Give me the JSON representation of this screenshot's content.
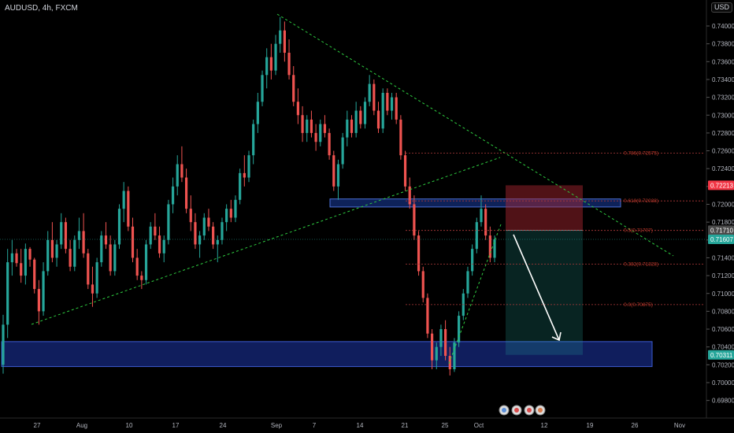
{
  "header": {
    "symbol": "AUDUSD, 4h, FXCM",
    "currency": "USD"
  },
  "chart_data": {
    "type": "candlestick",
    "y_ticks": [
      "0.74000",
      "0.73800",
      "0.73600",
      "0.73400",
      "0.73200",
      "0.73000",
      "0.72800",
      "0.72600",
      "0.72400",
      "0.72200",
      "0.72000",
      "0.71800",
      "0.71600",
      "0.71400",
      "0.71200",
      "0.71000",
      "0.70800",
      "0.70600",
      "0.70400",
      "0.70200",
      "0.70000",
      "0.69800"
    ],
    "x_ticks": [
      "27",
      "Aug",
      "10",
      "17",
      "24",
      "Sep",
      "7",
      "14",
      "21",
      "25",
      "Oct",
      "12",
      "19",
      "26",
      "Nov"
    ],
    "price_tags": [
      {
        "label": "0.72213",
        "price": 0.72213,
        "color": "#f23645"
      },
      {
        "label": "0.71710",
        "price": 0.7171,
        "color": "#4a4a4a"
      },
      {
        "label": "0.71607",
        "price": 0.71607,
        "color": "#26a69a"
      },
      {
        "label": "0.70311",
        "price": 0.70311,
        "color": "#26a69a"
      }
    ],
    "fib_levels": [
      {
        "label": "0.786(0.72575)",
        "price": 0.72575
      },
      {
        "label": "0.618(0.72038)",
        "price": 0.72038
      },
      {
        "label": "0.5(0.71707)",
        "price": 0.71707
      },
      {
        "label": "0.382(0.71328)",
        "price": 0.71328
      },
      {
        "label": "0.0(0.70875)",
        "price": 0.70875
      }
    ],
    "zones": [
      {
        "name": "resistance-zone",
        "top": 0.7206,
        "bottom": 0.7197
      },
      {
        "name": "support-zone",
        "top": 0.7046,
        "bottom": 0.7018
      }
    ],
    "trade": {
      "entry": 0.7171,
      "stop": 0.72213,
      "target": 0.70311
    },
    "candles": [
      [
        0.702,
        0.7076,
        0.701,
        0.7065
      ],
      [
        0.7065,
        0.715,
        0.705,
        0.7135
      ],
      [
        0.7135,
        0.716,
        0.712,
        0.7145
      ],
      [
        0.7145,
        0.715,
        0.713,
        0.7134
      ],
      [
        0.7134,
        0.715,
        0.7112,
        0.712
      ],
      [
        0.712,
        0.7156,
        0.711,
        0.715
      ],
      [
        0.715,
        0.7152,
        0.713,
        0.7138
      ],
      [
        0.7138,
        0.714,
        0.71,
        0.7105
      ],
      [
        0.7105,
        0.7115,
        0.7065,
        0.708
      ],
      [
        0.708,
        0.7135,
        0.7075,
        0.7125
      ],
      [
        0.7125,
        0.717,
        0.712,
        0.716
      ],
      [
        0.716,
        0.718,
        0.7135,
        0.714
      ],
      [
        0.714,
        0.716,
        0.713,
        0.7155
      ],
      [
        0.7155,
        0.719,
        0.715,
        0.718
      ],
      [
        0.718,
        0.7185,
        0.7145,
        0.715
      ],
      [
        0.715,
        0.716,
        0.7125,
        0.713
      ],
      [
        0.713,
        0.7165,
        0.7125,
        0.716
      ],
      [
        0.716,
        0.7185,
        0.715,
        0.717
      ],
      [
        0.717,
        0.719,
        0.714,
        0.7145
      ],
      [
        0.7145,
        0.715,
        0.7105,
        0.711
      ],
      [
        0.711,
        0.713,
        0.7085,
        0.71
      ],
      [
        0.71,
        0.714,
        0.7095,
        0.7135
      ],
      [
        0.7135,
        0.717,
        0.713,
        0.7165
      ],
      [
        0.7165,
        0.718,
        0.715,
        0.7155
      ],
      [
        0.7155,
        0.7165,
        0.712,
        0.7125
      ],
      [
        0.7125,
        0.716,
        0.712,
        0.7155
      ],
      [
        0.7155,
        0.72,
        0.715,
        0.7195
      ],
      [
        0.7195,
        0.7225,
        0.718,
        0.7215
      ],
      [
        0.7215,
        0.722,
        0.717,
        0.7175
      ],
      [
        0.7175,
        0.7185,
        0.7135,
        0.714
      ],
      [
        0.714,
        0.715,
        0.7115,
        0.712
      ],
      [
        0.712,
        0.7125,
        0.7105,
        0.7115
      ],
      [
        0.7115,
        0.716,
        0.711,
        0.7155
      ],
      [
        0.7155,
        0.718,
        0.715,
        0.7175
      ],
      [
        0.7175,
        0.719,
        0.716,
        0.7165
      ],
      [
        0.7165,
        0.7175,
        0.714,
        0.7145
      ],
      [
        0.7145,
        0.7165,
        0.7135,
        0.716
      ],
      [
        0.716,
        0.7205,
        0.7155,
        0.72
      ],
      [
        0.72,
        0.723,
        0.719,
        0.722
      ],
      [
        0.722,
        0.7255,
        0.721,
        0.7245
      ],
      [
        0.7245,
        0.7265,
        0.7225,
        0.723
      ],
      [
        0.723,
        0.724,
        0.719,
        0.7195
      ],
      [
        0.7195,
        0.721,
        0.717,
        0.718
      ],
      [
        0.718,
        0.719,
        0.715,
        0.7155
      ],
      [
        0.7155,
        0.717,
        0.714,
        0.7165
      ],
      [
        0.7165,
        0.719,
        0.716,
        0.7185
      ],
      [
        0.7185,
        0.7195,
        0.717,
        0.7175
      ],
      [
        0.7175,
        0.718,
        0.715,
        0.7155
      ],
      [
        0.7155,
        0.7165,
        0.7135,
        0.716
      ],
      [
        0.716,
        0.7185,
        0.7155,
        0.718
      ],
      [
        0.718,
        0.72,
        0.717,
        0.7195
      ],
      [
        0.7195,
        0.7205,
        0.718,
        0.7185
      ],
      [
        0.7185,
        0.721,
        0.718,
        0.7205
      ],
      [
        0.7205,
        0.724,
        0.72,
        0.7235
      ],
      [
        0.7235,
        0.7255,
        0.722,
        0.723
      ],
      [
        0.723,
        0.726,
        0.7225,
        0.7255
      ],
      [
        0.7255,
        0.7295,
        0.7245,
        0.729
      ],
      [
        0.729,
        0.7325,
        0.728,
        0.7315
      ],
      [
        0.7315,
        0.735,
        0.731,
        0.7345
      ],
      [
        0.7345,
        0.7375,
        0.733,
        0.7365
      ],
      [
        0.7365,
        0.738,
        0.734,
        0.735
      ],
      [
        0.735,
        0.739,
        0.7345,
        0.738
      ],
      [
        0.738,
        0.741,
        0.737,
        0.7395
      ],
      [
        0.7395,
        0.7405,
        0.736,
        0.737
      ],
      [
        0.737,
        0.7385,
        0.734,
        0.7345
      ],
      [
        0.7345,
        0.7355,
        0.731,
        0.7315
      ],
      [
        0.7315,
        0.733,
        0.729,
        0.73
      ],
      [
        0.73,
        0.731,
        0.727,
        0.728
      ],
      [
        0.728,
        0.73,
        0.727,
        0.7295
      ],
      [
        0.7295,
        0.7305,
        0.7275,
        0.728
      ],
      [
        0.728,
        0.729,
        0.726,
        0.727
      ],
      [
        0.727,
        0.7295,
        0.7265,
        0.729
      ],
      [
        0.729,
        0.73,
        0.7275,
        0.728
      ],
      [
        0.728,
        0.7285,
        0.725,
        0.7255
      ],
      [
        0.7255,
        0.726,
        0.7215,
        0.722
      ],
      [
        0.722,
        0.725,
        0.7205,
        0.7245
      ],
      [
        0.7245,
        0.728,
        0.724,
        0.7275
      ],
      [
        0.7275,
        0.7305,
        0.7265,
        0.7295
      ],
      [
        0.7295,
        0.73,
        0.7275,
        0.728
      ],
      [
        0.728,
        0.7315,
        0.7275,
        0.7305
      ],
      [
        0.7305,
        0.731,
        0.7285,
        0.729
      ],
      [
        0.729,
        0.732,
        0.7285,
        0.7315
      ],
      [
        0.7315,
        0.7345,
        0.731,
        0.7335
      ],
      [
        0.7335,
        0.734,
        0.73,
        0.7305
      ],
      [
        0.7305,
        0.7315,
        0.728,
        0.7285
      ],
      [
        0.7285,
        0.733,
        0.728,
        0.7325
      ],
      [
        0.7325,
        0.733,
        0.73,
        0.7305
      ],
      [
        0.7305,
        0.7325,
        0.7295,
        0.732
      ],
      [
        0.732,
        0.7325,
        0.729,
        0.7295
      ],
      [
        0.7295,
        0.73,
        0.725,
        0.7255
      ],
      [
        0.7255,
        0.726,
        0.7215,
        0.722
      ],
      [
        0.722,
        0.723,
        0.7195,
        0.72
      ],
      [
        0.72,
        0.721,
        0.716,
        0.7165
      ],
      [
        0.7165,
        0.717,
        0.712,
        0.7125
      ],
      [
        0.7125,
        0.713,
        0.709,
        0.7095
      ],
      [
        0.7095,
        0.71,
        0.705,
        0.7055
      ],
      [
        0.7055,
        0.706,
        0.7015,
        0.7025
      ],
      [
        0.7025,
        0.7045,
        0.7015,
        0.704
      ],
      [
        0.704,
        0.7065,
        0.703,
        0.706
      ],
      [
        0.706,
        0.707,
        0.7025,
        0.703
      ],
      [
        0.703,
        0.704,
        0.7008,
        0.7015
      ],
      [
        0.7015,
        0.705,
        0.7012,
        0.7045
      ],
      [
        0.7045,
        0.708,
        0.704,
        0.7075
      ],
      [
        0.7075,
        0.7105,
        0.707,
        0.71
      ],
      [
        0.71,
        0.713,
        0.7095,
        0.7125
      ],
      [
        0.7125,
        0.7155,
        0.712,
        0.715
      ],
      [
        0.715,
        0.7185,
        0.7145,
        0.718
      ],
      [
        0.718,
        0.721,
        0.7175,
        0.7195
      ],
      [
        0.7195,
        0.72,
        0.716,
        0.7165
      ],
      [
        0.7165,
        0.7175,
        0.7135,
        0.714
      ],
      [
        0.714,
        0.7165,
        0.7135,
        0.71607
      ]
    ]
  }
}
